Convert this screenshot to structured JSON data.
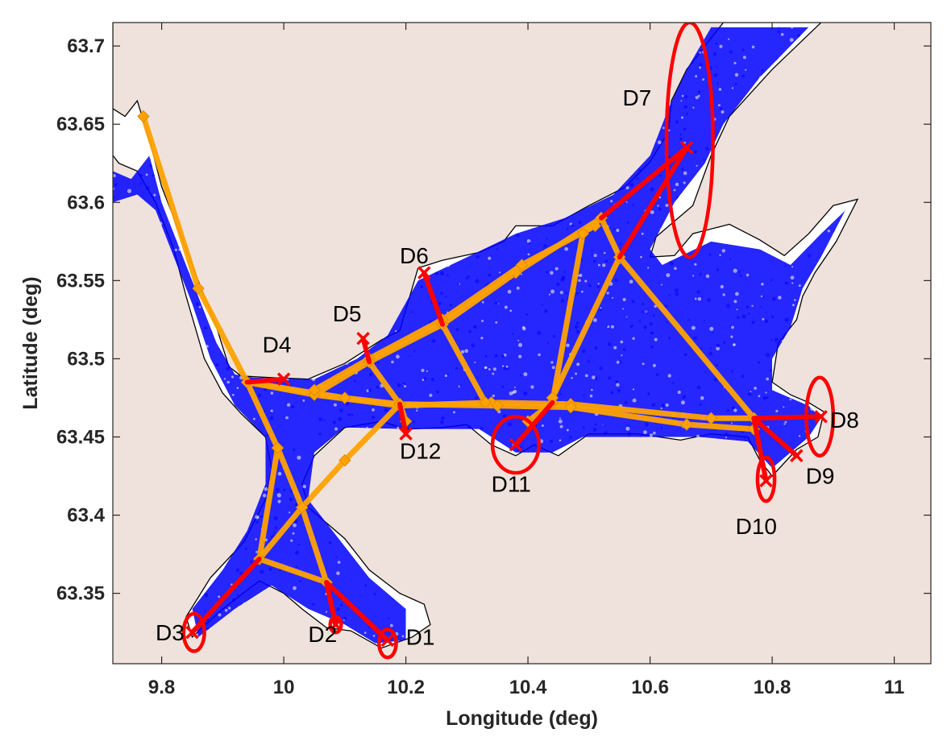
{
  "chart_data": {
    "type": "scatter",
    "title": "",
    "xlabel": "Longitude (deg)",
    "ylabel": "Latitude (deg)",
    "xlim": [
      9.72,
      11.06
    ],
    "ylim": [
      63.305,
      63.715
    ],
    "xticks": [
      9.8,
      10,
      10.2,
      10.4,
      10.6,
      10.8,
      11
    ],
    "xtick_labels": [
      "9.8",
      "10",
      "10.2",
      "10.4",
      "10.6",
      "10.8",
      "11"
    ],
    "yticks": [
      63.35,
      63.4,
      63.45,
      63.5,
      63.55,
      63.6,
      63.65,
      63.7
    ],
    "ytick_labels": [
      "63.35",
      "63.4",
      "63.45",
      "63.5",
      "63.55",
      "63.6",
      "63.65",
      "63.7"
    ],
    "grid": false,
    "colors": {
      "land_background": "#efe2dc",
      "water": "#ffffff",
      "coastline": "#000000",
      "observations": "#0000ff",
      "main_routes": "#ffa200",
      "destination_branches": "#ff0000",
      "destination_regions": "#ff0000"
    },
    "water_polygon": [
      [
        9.72,
        63.715
      ],
      [
        9.72,
        63.66
      ],
      [
        9.74,
        63.655
      ],
      [
        9.76,
        63.665
      ],
      [
        9.78,
        63.64
      ],
      [
        9.8,
        63.61
      ],
      [
        9.83,
        63.58
      ],
      [
        9.86,
        63.55
      ],
      [
        9.89,
        63.52
      ],
      [
        9.91,
        63.495
      ],
      [
        9.93,
        63.489
      ],
      [
        9.975,
        63.488
      ],
      [
        10.04,
        63.487
      ],
      [
        10.1,
        63.497
      ],
      [
        10.16,
        63.512
      ],
      [
        10.19,
        63.518
      ],
      [
        10.22,
        63.558
      ],
      [
        10.26,
        63.563
      ],
      [
        10.32,
        63.568
      ],
      [
        10.36,
        63.575
      ],
      [
        10.38,
        63.585
      ],
      [
        10.44,
        63.585
      ],
      [
        10.5,
        63.598
      ],
      [
        10.56,
        63.61
      ],
      [
        10.6,
        63.626
      ],
      [
        10.63,
        63.645
      ],
      [
        10.635,
        63.665
      ],
      [
        10.66,
        63.685
      ],
      [
        10.7,
        63.705
      ],
      [
        10.72,
        63.715
      ],
      [
        10.88,
        63.715
      ],
      [
        10.8,
        63.685
      ],
      [
        10.73,
        63.655
      ],
      [
        10.7,
        63.63
      ],
      [
        10.67,
        63.598
      ],
      [
        10.61,
        63.578
      ],
      [
        10.6,
        63.565
      ],
      [
        10.64,
        63.566
      ],
      [
        10.67,
        63.58
      ],
      [
        10.73,
        63.586
      ],
      [
        10.78,
        63.576
      ],
      [
        10.82,
        63.566
      ],
      [
        10.86,
        63.58
      ],
      [
        10.9,
        63.598
      ],
      [
        10.94,
        63.602
      ],
      [
        10.905,
        63.575
      ],
      [
        10.87,
        63.555
      ],
      [
        10.85,
        63.54
      ],
      [
        10.84,
        63.525
      ],
      [
        10.81,
        63.51
      ],
      [
        10.8,
        63.485
      ],
      [
        10.83,
        63.477
      ],
      [
        10.86,
        63.472
      ],
      [
        10.885,
        63.466
      ],
      [
        10.875,
        63.45
      ],
      [
        10.84,
        63.442
      ],
      [
        10.8,
        63.425
      ],
      [
        10.78,
        63.435
      ],
      [
        10.76,
        63.45
      ],
      [
        10.7,
        63.452
      ],
      [
        10.65,
        63.448
      ],
      [
        10.58,
        63.452
      ],
      [
        10.5,
        63.452
      ],
      [
        10.45,
        63.438
      ],
      [
        10.41,
        63.445
      ],
      [
        10.38,
        63.438
      ],
      [
        10.34,
        63.445
      ],
      [
        10.3,
        63.458
      ],
      [
        10.26,
        63.456
      ],
      [
        10.2,
        63.455
      ],
      [
        10.16,
        63.46
      ],
      [
        10.1,
        63.456
      ],
      [
        10.05,
        63.438
      ],
      [
        10.03,
        63.42
      ],
      [
        10.04,
        63.405
      ],
      [
        10.07,
        63.395
      ],
      [
        10.1,
        63.385
      ],
      [
        10.14,
        63.365
      ],
      [
        10.19,
        63.35
      ],
      [
        10.23,
        63.343
      ],
      [
        10.24,
        63.33
      ],
      [
        10.21,
        63.322
      ],
      [
        10.16,
        63.315
      ],
      [
        10.11,
        63.326
      ],
      [
        10.07,
        63.328
      ],
      [
        10.03,
        63.34
      ],
      [
        10.0,
        63.35
      ],
      [
        9.96,
        63.358
      ],
      [
        9.9,
        63.34
      ],
      [
        9.85,
        63.322
      ],
      [
        9.84,
        63.335
      ],
      [
        9.88,
        63.36
      ],
      [
        9.935,
        63.383
      ],
      [
        9.97,
        63.41
      ],
      [
        9.98,
        63.43
      ],
      [
        9.97,
        63.45
      ],
      [
        9.93,
        63.465
      ],
      [
        9.9,
        63.478
      ],
      [
        9.87,
        63.5
      ],
      [
        9.84,
        63.54
      ],
      [
        9.82,
        63.57
      ],
      [
        9.79,
        63.6
      ],
      [
        9.76,
        63.62
      ],
      [
        9.73,
        63.625
      ],
      [
        9.72,
        63.63
      ]
    ],
    "traffic_regions": [
      [
        [
          9.72,
          63.715
        ],
        [
          9.72,
          63.62
        ],
        [
          9.75,
          63.615
        ],
        [
          9.78,
          63.63
        ],
        [
          9.8,
          63.6
        ],
        [
          9.83,
          63.57
        ],
        [
          9.86,
          63.54
        ],
        [
          9.89,
          63.51
        ],
        [
          9.92,
          63.49
        ],
        [
          9.95,
          63.488
        ],
        [
          10.05,
          63.487
        ],
        [
          10.12,
          63.5
        ],
        [
          10.17,
          63.515
        ],
        [
          10.22,
          63.55
        ],
        [
          10.3,
          63.565
        ],
        [
          10.38,
          63.58
        ],
        [
          10.46,
          63.59
        ],
        [
          10.54,
          63.605
        ],
        [
          10.6,
          63.63
        ],
        [
          10.63,
          63.66
        ],
        [
          10.66,
          63.685
        ],
        [
          10.7,
          63.712
        ],
        [
          10.86,
          63.712
        ],
        [
          10.78,
          63.68
        ],
        [
          10.72,
          63.65
        ],
        [
          10.69,
          63.625
        ],
        [
          10.64,
          63.6
        ],
        [
          10.6,
          63.57
        ],
        [
          10.62,
          63.56
        ],
        [
          10.7,
          63.575
        ],
        [
          10.78,
          63.57
        ],
        [
          10.83,
          63.56
        ],
        [
          10.88,
          63.58
        ],
        [
          10.92,
          63.595
        ],
        [
          10.88,
          63.565
        ],
        [
          10.85,
          63.545
        ],
        [
          10.83,
          63.52
        ],
        [
          10.8,
          63.5
        ],
        [
          10.8,
          63.48
        ],
        [
          10.86,
          63.47
        ],
        [
          10.88,
          63.462
        ],
        [
          10.86,
          63.45
        ],
        [
          10.8,
          63.43
        ],
        [
          10.76,
          63.447
        ],
        [
          10.68,
          63.45
        ],
        [
          10.58,
          63.45
        ],
        [
          10.49,
          63.45
        ],
        [
          10.44,
          63.44
        ],
        [
          10.38,
          63.44
        ],
        [
          10.32,
          63.455
        ],
        [
          10.2,
          63.455
        ],
        [
          10.1,
          63.456
        ],
        [
          10.05,
          63.44
        ],
        [
          10.04,
          63.41
        ],
        [
          10.08,
          63.39
        ],
        [
          10.14,
          63.36
        ],
        [
          10.2,
          63.34
        ],
        [
          10.2,
          63.32
        ],
        [
          10.15,
          63.318
        ],
        [
          10.1,
          63.33
        ],
        [
          10.04,
          63.34
        ],
        [
          9.98,
          63.355
        ],
        [
          9.92,
          63.34
        ],
        [
          9.86,
          63.322
        ],
        [
          9.85,
          63.34
        ],
        [
          9.9,
          63.365
        ],
        [
          9.94,
          63.39
        ],
        [
          9.97,
          63.42
        ],
        [
          9.97,
          63.45
        ],
        [
          9.92,
          63.47
        ],
        [
          9.88,
          63.5
        ],
        [
          9.85,
          63.535
        ],
        [
          9.82,
          63.565
        ],
        [
          9.79,
          63.595
        ],
        [
          9.76,
          63.605
        ],
        [
          9.72,
          63.6
        ]
      ]
    ],
    "main_routes": [
      [
        [
          9.77,
          63.655
        ],
        [
          9.86,
          63.545
        ],
        [
          9.94,
          63.485
        ],
        [
          10.05,
          63.477
        ],
        [
          10.19,
          63.47
        ],
        [
          10.34,
          63.472
        ],
        [
          10.47,
          63.471
        ],
        [
          10.7,
          63.462
        ],
        [
          10.77,
          63.462
        ]
      ],
      [
        [
          9.94,
          63.485
        ],
        [
          10.1,
          63.475
        ],
        [
          10.19,
          63.471
        ],
        [
          10.35,
          63.47
        ],
        [
          10.47,
          63.469
        ],
        [
          10.66,
          63.458
        ],
        [
          10.77,
          63.455
        ]
      ],
      [
        [
          9.94,
          63.485
        ],
        [
          9.99,
          63.443
        ],
        [
          10.03,
          63.405
        ],
        [
          10.07,
          63.357
        ]
      ],
      [
        [
          9.99,
          63.443
        ],
        [
          9.96,
          63.372
        ],
        [
          10.07,
          63.357
        ]
      ],
      [
        [
          9.96,
          63.372
        ],
        [
          10.03,
          63.405
        ],
        [
          10.1,
          63.435
        ],
        [
          10.19,
          63.471
        ]
      ],
      [
        [
          10.05,
          63.477
        ],
        [
          10.14,
          63.498
        ],
        [
          10.26,
          63.522
        ],
        [
          10.38,
          63.555
        ],
        [
          10.52,
          63.59
        ]
      ],
      [
        [
          10.05,
          63.48
        ],
        [
          10.14,
          63.5
        ],
        [
          10.26,
          63.525
        ],
        [
          10.39,
          63.56
        ],
        [
          10.51,
          63.585
        ]
      ],
      [
        [
          10.52,
          63.59
        ],
        [
          10.55,
          63.565
        ],
        [
          10.77,
          63.462
        ]
      ],
      [
        [
          10.52,
          63.59
        ],
        [
          10.49,
          63.58
        ],
        [
          10.44,
          63.472
        ],
        [
          10.4,
          63.46
        ]
      ],
      [
        [
          10.55,
          63.565
        ],
        [
          10.44,
          63.475
        ]
      ],
      [
        [
          10.14,
          63.498
        ],
        [
          10.19,
          63.471
        ]
      ],
      [
        [
          10.26,
          63.522
        ],
        [
          10.33,
          63.472
        ]
      ],
      [
        [
          10.19,
          63.471
        ],
        [
          10.2,
          63.46
        ]
      ]
    ],
    "destination_branches": [
      [
        [
          10.07,
          63.357
        ],
        [
          10.17,
          63.32
        ]
      ],
      [
        [
          10.07,
          63.357
        ],
        [
          10.085,
          63.33
        ]
      ],
      [
        [
          9.96,
          63.372
        ],
        [
          9.85,
          63.325
        ]
      ],
      [
        [
          9.94,
          63.485
        ],
        [
          10.0,
          63.487
        ]
      ],
      [
        [
          10.14,
          63.498
        ],
        [
          10.13,
          63.513
        ]
      ],
      [
        [
          10.26,
          63.522
        ],
        [
          10.23,
          63.555
        ]
      ],
      [
        [
          10.52,
          63.59
        ],
        [
          10.66,
          63.635
        ]
      ],
      [
        [
          10.55,
          63.565
        ],
        [
          10.66,
          63.635
        ]
      ],
      [
        [
          10.77,
          63.462
        ],
        [
          10.88,
          63.463
        ]
      ],
      [
        [
          10.77,
          63.462
        ],
        [
          10.84,
          63.438
        ]
      ],
      [
        [
          10.77,
          63.462
        ],
        [
          10.79,
          63.422
        ]
      ],
      [
        [
          10.44,
          63.472
        ],
        [
          10.38,
          63.445
        ]
      ],
      [
        [
          10.19,
          63.471
        ],
        [
          10.2,
          63.452
        ]
      ]
    ],
    "destination_regions": [
      {
        "x": 10.17,
        "y": 63.318,
        "rx": 0.014,
        "ry": 0.009
      },
      {
        "x": 10.085,
        "y": 63.33,
        "rx": 0.009,
        "ry": 0.005
      },
      {
        "x": 9.853,
        "y": 63.325,
        "rx": 0.017,
        "ry": 0.012
      },
      {
        "x": 10.665,
        "y": 63.64,
        "rx": 0.038,
        "ry": 0.075
      },
      {
        "x": 10.878,
        "y": 63.463,
        "rx": 0.022,
        "ry": 0.025
      },
      {
        "x": 10.79,
        "y": 63.423,
        "rx": 0.014,
        "ry": 0.014
      },
      {
        "x": 10.38,
        "y": 63.445,
        "rx": 0.038,
        "ry": 0.018
      }
    ],
    "destination_labels": [
      {
        "text": "D1",
        "x": 10.2,
        "y": 63.317
      },
      {
        "text": "D2",
        "x": 10.04,
        "y": 63.319
      },
      {
        "text": "D3",
        "x": 9.79,
        "y": 63.32
      },
      {
        "text": "D4",
        "x": 9.965,
        "y": 63.504
      },
      {
        "text": "D5",
        "x": 10.08,
        "y": 63.524
      },
      {
        "text": "D6",
        "x": 10.19,
        "y": 63.561
      },
      {
        "text": "D7",
        "x": 10.555,
        "y": 63.662
      },
      {
        "text": "D8",
        "x": 10.895,
        "y": 63.456
      },
      {
        "text": "D9",
        "x": 10.855,
        "y": 63.42
      },
      {
        "text": "D10",
        "x": 10.74,
        "y": 63.388
      },
      {
        "text": "D11",
        "x": 10.34,
        "y": 63.415
      },
      {
        "text": "D12",
        "x": 10.19,
        "y": 63.436
      }
    ]
  }
}
